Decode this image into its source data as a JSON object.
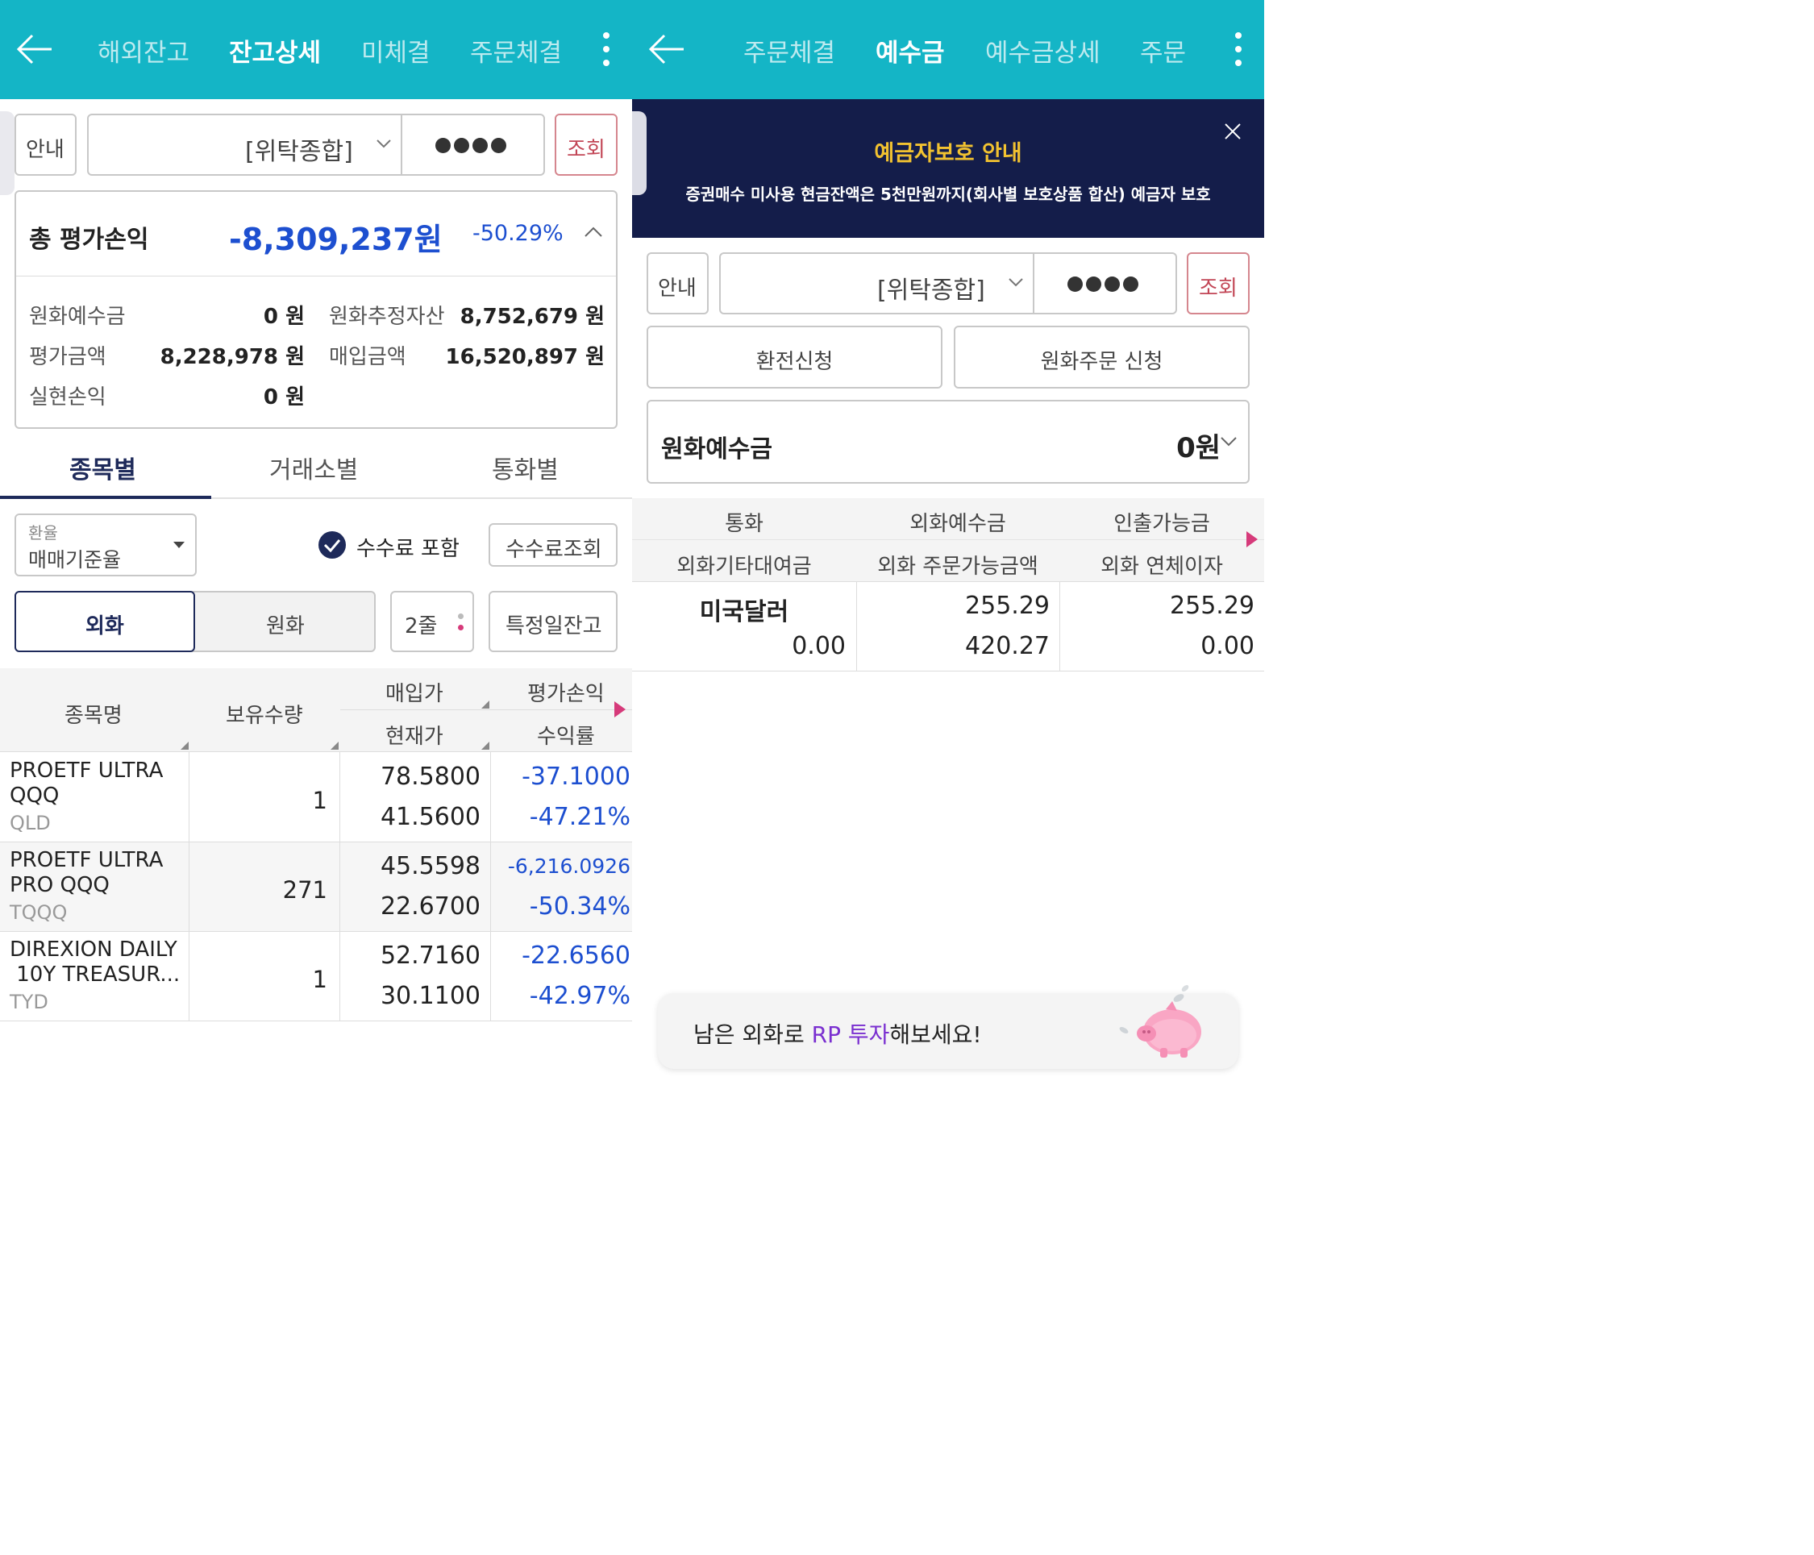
{
  "left": {
    "tabs": [
      "해외잔고",
      "잔고상세",
      "미체결",
      "주문체결"
    ],
    "guide_label": "안내",
    "account_type": "[위탁종합]",
    "lookup_label": "조회",
    "summary": {
      "title": "총 평가손익",
      "amount": "-8,309,237원",
      "rate": "-50.29%",
      "rows": [
        {
          "label": "원화예수금",
          "value": "0 원"
        },
        {
          "label": "원화추정자산",
          "value": "8,752,679 원"
        },
        {
          "label": "평가금액",
          "value": "8,228,978 원"
        },
        {
          "label": "매입금액",
          "value": "16,520,897 원"
        },
        {
          "label": "실현손익",
          "value": "0 원"
        }
      ]
    },
    "subtabs": [
      "종목별",
      "거래소별",
      "통화별"
    ],
    "rate_select": {
      "caption": "환율",
      "value": "매매기준율"
    },
    "fee_include_label": "수수료 포함",
    "fee_query_label": "수수료조회",
    "currency_toggle": [
      "외화",
      "원화"
    ],
    "lines_select": "2줄",
    "specific_day_label": "특정일잔고",
    "table": {
      "headers": {
        "name": "종목명",
        "qty": "보유수량",
        "buy": "매입가",
        "cur": "현재가",
        "pl": "평가손익",
        "ret": "수익률"
      },
      "rows": [
        {
          "name1": "PROETF ULTRA",
          "name2": "QQQ",
          "ticker": "QLD",
          "qty": "1",
          "buy": "78.5800",
          "cur": "41.5600",
          "pl": "-37.1000",
          "ret": "-47.21%"
        },
        {
          "name1": "PROETF ULTRA",
          "name2": "PRO QQQ",
          "ticker": "TQQQ",
          "qty": "271",
          "buy": "45.5598",
          "cur": "22.6700",
          "pl": "-6,216.0926",
          "ret": "-50.34%"
        },
        {
          "name1": "DIREXION DAILY",
          "name2": " 10Y TREASUR...",
          "ticker": "TYD",
          "qty": "1",
          "buy": "52.7160",
          "cur": "30.1100",
          "pl": "-22.6560",
          "ret": "-42.97%"
        }
      ]
    }
  },
  "right": {
    "tabs": [
      "주문체결",
      "예수금",
      "예수금상세",
      "주문"
    ],
    "banner": {
      "title": "예금자보호 안내",
      "text": "증권매수 미사용 현금잔액은 5천만원까지(회사별 보호상품 합산) 예금자 보호"
    },
    "guide_label": "안내",
    "account_type": "[위탁종합]",
    "lookup_label": "조회",
    "exchange_button": "환전신청",
    "krw_order_button": "원화주문 신청",
    "krw_deposit": {
      "label": "원화예수금",
      "value": "0원"
    },
    "table": {
      "headers_row1": [
        "통화",
        "외화예수금",
        "인출가능금"
      ],
      "headers_row2": [
        "외화기타대여금",
        "외화 주문가능금액",
        "외화 연체이자"
      ],
      "row": {
        "currency": "미국달러",
        "other_loan": "0.00",
        "deposit": "255.29",
        "orderable": "420.27",
        "withdrawable": "255.29",
        "overdue": "0.00"
      }
    },
    "promo": {
      "prefix": "남은 외화로 ",
      "highlight": "RP 투자",
      "suffix": "해보세요!"
    }
  },
  "colors": {
    "header": "#14b5c6",
    "negative": "#1d4fd0",
    "banner": "#141d4a",
    "banner_title": "#f2c230",
    "lookup": "#c24656",
    "promo_highlight": "#7a2fd0"
  }
}
